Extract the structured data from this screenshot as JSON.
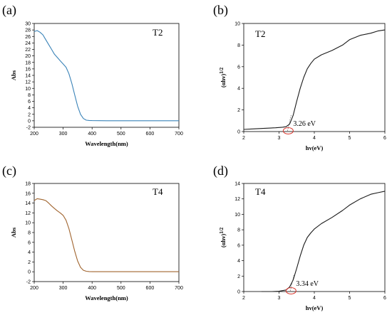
{
  "chart_data": [
    {
      "type": "line",
      "panel_label": "(a)",
      "tag": "T2",
      "xlabel": "Wavelength(nm)",
      "ylabel": "Abs",
      "xlim": [
        200,
        700
      ],
      "ylim": [
        -2,
        30
      ],
      "x_ticks": [
        200,
        300,
        400,
        500,
        600,
        700
      ],
      "y_ticks": [
        -2,
        0,
        2,
        4,
        6,
        8,
        10,
        12,
        14,
        16,
        18,
        20,
        22,
        24,
        26,
        28,
        30
      ],
      "line_color": "#3a83b8",
      "x": [
        200,
        210,
        220,
        230,
        240,
        250,
        260,
        270,
        280,
        290,
        300,
        310,
        320,
        330,
        340,
        350,
        360,
        370,
        380,
        390,
        400,
        450,
        500,
        550,
        600,
        650,
        700
      ],
      "y": [
        27.5,
        27.8,
        27.3,
        26.5,
        25.0,
        23.5,
        22.0,
        20.5,
        19.5,
        18.5,
        17.5,
        16.5,
        14.5,
        11.5,
        8.0,
        4.5,
        2.0,
        0.7,
        0.2,
        0.1,
        0.05,
        0.02,
        0.02,
        0.02,
        0.02,
        0.02,
        0.02
      ]
    },
    {
      "type": "line",
      "panel_label": "(b)",
      "tag": "T2",
      "xlabel": "hv(eV)",
      "ylabel": "(αhv)1/2",
      "ylabel_base": "(αhv)",
      "ylabel_sup": "1/2",
      "xlim": [
        2,
        6
      ],
      "ylim": [
        0,
        10
      ],
      "x_ticks": [
        2,
        3,
        4,
        5,
        6
      ],
      "y_ticks": [
        0,
        2,
        4,
        6,
        8,
        10
      ],
      "line_color": "#1a1a1a",
      "annotation": "3.26 eV",
      "marker_x": 3.26,
      "x": [
        2.0,
        2.3,
        2.6,
        2.9,
        3.1,
        3.2,
        3.3,
        3.4,
        3.5,
        3.6,
        3.7,
        3.8,
        3.9,
        4.0,
        4.2,
        4.5,
        4.8,
        5.0,
        5.3,
        5.6,
        5.8,
        6.0
      ],
      "y": [
        0.2,
        0.25,
        0.3,
        0.35,
        0.4,
        0.45,
        0.7,
        1.5,
        2.8,
        4.0,
        5.0,
        5.8,
        6.3,
        6.7,
        7.1,
        7.5,
        8.0,
        8.5,
        8.9,
        9.1,
        9.3,
        9.4
      ]
    },
    {
      "type": "line",
      "panel_label": "(c)",
      "tag": "T4",
      "xlabel": "Wavelength(nm)",
      "ylabel": "Abs",
      "xlim": [
        200,
        700
      ],
      "ylim": [
        -2,
        18
      ],
      "x_ticks": [
        200,
        300,
        400,
        500,
        600,
        700
      ],
      "y_ticks": [
        -2,
        0,
        2,
        4,
        6,
        8,
        10,
        12,
        14,
        16,
        18
      ],
      "line_color": "#a0642e",
      "x": [
        200,
        210,
        220,
        230,
        240,
        250,
        260,
        270,
        280,
        290,
        300,
        310,
        320,
        330,
        340,
        350,
        360,
        370,
        380,
        390,
        400,
        450,
        500,
        550,
        600,
        650,
        700
      ],
      "y": [
        14.5,
        14.9,
        14.8,
        14.7,
        14.5,
        14.0,
        13.4,
        12.9,
        12.4,
        12.0,
        11.5,
        10.5,
        8.8,
        6.5,
        4.2,
        2.2,
        0.9,
        0.3,
        0.1,
        0.05,
        0.02,
        0.02,
        0.02,
        0.02,
        0.02,
        0.02,
        0.02
      ]
    },
    {
      "type": "line",
      "panel_label": "(d)",
      "tag": "T4",
      "xlabel": "hv(eV)",
      "ylabel": "(αhv)1/2",
      "ylabel_base": "(αhv)",
      "ylabel_sup": "1/2",
      "xlim": [
        2,
        6
      ],
      "ylim": [
        0,
        14
      ],
      "x_ticks": [
        2,
        3,
        4,
        5,
        6
      ],
      "y_ticks": [
        0,
        2,
        4,
        6,
        8,
        10,
        12,
        14
      ],
      "line_color": "#1a1a1a",
      "annotation": "3.34 eV",
      "marker_x": 3.34,
      "x": [
        2.5,
        2.8,
        3.0,
        3.2,
        3.3,
        3.4,
        3.5,
        3.6,
        3.7,
        3.8,
        3.9,
        4.0,
        4.2,
        4.5,
        4.8,
        5.0,
        5.3,
        5.6,
        5.8,
        6.0
      ],
      "y": [
        0.0,
        0.0,
        0.05,
        0.2,
        0.6,
        1.5,
        3.0,
        4.6,
        6.0,
        7.0,
        7.6,
        8.1,
        8.8,
        9.6,
        10.5,
        11.2,
        12.0,
        12.6,
        12.8,
        13.0
      ]
    }
  ]
}
